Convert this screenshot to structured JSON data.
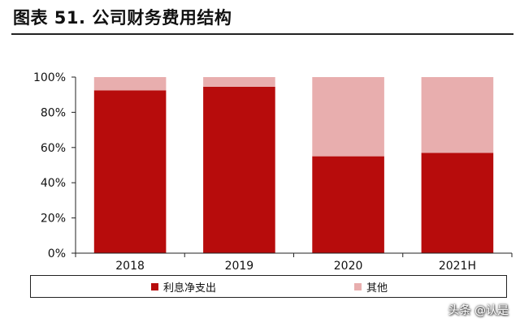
{
  "title": "图表 51. 公司财务费用结构",
  "watermark": "头条 @认是",
  "colors": {
    "interest": "#b70c0c",
    "other": "#e8aeae",
    "axis": "#222222",
    "text": "#111111"
  },
  "chart_data": {
    "type": "bar",
    "stacked": true,
    "categories": [
      "2018",
      "2019",
      "2020",
      "2021H"
    ],
    "series": [
      {
        "name": "利息净支出",
        "values": [
          92.5,
          94.5,
          55,
          57
        ],
        "color": "#b70c0c"
      },
      {
        "name": "其他",
        "values": [
          7.5,
          5.5,
          45,
          43
        ],
        "color": "#e8aeae"
      }
    ],
    "ylim": [
      0,
      100
    ],
    "yticks": [
      "0%",
      "20%",
      "40%",
      "60%",
      "80%",
      "100%"
    ],
    "ytick_values": [
      0,
      20,
      40,
      60,
      80,
      100
    ],
    "legend": "bottom",
    "grid": false
  }
}
